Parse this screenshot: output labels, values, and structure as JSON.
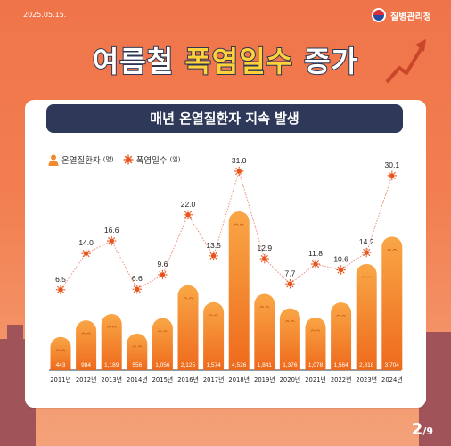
{
  "header": {
    "date": "2025.05.15.",
    "agency": "질병관리청",
    "title_part1": "여름철",
    "title_part2": "폭염일수",
    "title_part3": "증가"
  },
  "subtitle": "매년 온열질환자 지속 발생",
  "legend": {
    "patients": "온열질환자",
    "patients_unit": "(명)",
    "heatwave": "폭염일수",
    "heatwave_unit": "(일)"
  },
  "page": {
    "current": "2",
    "separator": "/",
    "total": "9"
  },
  "colors": {
    "background": "#f27f50",
    "bar_top": "#f9a646",
    "bar_bottom": "#ee6a1c",
    "line": "#f08d7e",
    "sun": "#e7541c",
    "title_band": "#2e3858",
    "title_highlight": "#ffd23c"
  },
  "chart_data": {
    "type": "bar",
    "categories": [
      "2011년",
      "2012년",
      "2013년",
      "2014년",
      "2015년",
      "2016년",
      "2017년",
      "2018년",
      "2019년",
      "2020년",
      "2021년",
      "2022년",
      "2023년",
      "2024년"
    ],
    "series": [
      {
        "name": "온열질환자(명)",
        "type": "bar",
        "values": [
          443,
          984,
          1189,
          556,
          1056,
          2125,
          1574,
          4526,
          1841,
          1376,
          1078,
          1564,
          2818,
          3704
        ],
        "labels": [
          "443",
          "984",
          "1,189",
          "556",
          "1,056",
          "2,125",
          "1,574",
          "4,526",
          "1,841",
          "1,376",
          "1,078",
          "1,564",
          "2,818",
          "3,704"
        ]
      },
      {
        "name": "폭염일수(일)",
        "type": "line",
        "values": [
          6.5,
          14.0,
          16.6,
          6.6,
          9.6,
          22.0,
          13.5,
          31.0,
          12.9,
          7.7,
          11.8,
          10.6,
          14.2,
          30.1
        ],
        "labels": [
          "6.5",
          "14.0",
          "16.6",
          "6.6",
          "9.6",
          "22.0",
          "13.5",
          "31.0",
          "12.9",
          "7.7",
          "11.8",
          "10.6",
          "14.2",
          "30.1"
        ]
      }
    ],
    "grid": false,
    "legend_position": "top-left"
  }
}
